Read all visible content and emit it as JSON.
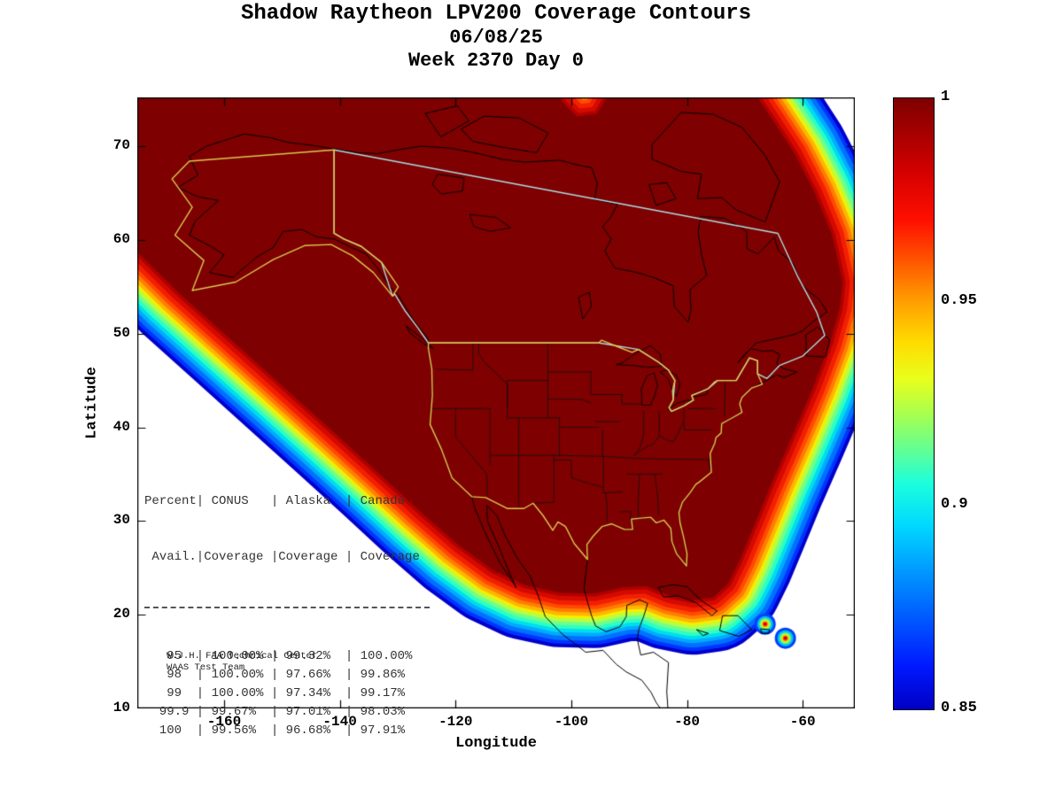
{
  "title": {
    "line1": "Shadow Raytheon LPV200 Coverage Contours",
    "line2": "06/08/25",
    "line3": "Week 2370 Day 0"
  },
  "axes": {
    "xlabel": "Longitude",
    "ylabel": "Latitude",
    "x_ticks": [
      "-160",
      "-140",
      "-120",
      "-100",
      "-80",
      "-60"
    ],
    "x_tick_values": [
      -160,
      -140,
      -120,
      -100,
      -80,
      -60
    ],
    "y_ticks": [
      "70",
      "60",
      "50",
      "40",
      "30",
      "20",
      "10"
    ],
    "y_tick_values": [
      70,
      60,
      50,
      40,
      30,
      20,
      10
    ],
    "x_range": [
      -175,
      -51
    ],
    "y_range": [
      10,
      75.2
    ]
  },
  "colorbar": {
    "tick_labels": [
      "1",
      "0.95",
      "0.9",
      "0.85"
    ],
    "tick_values": [
      1,
      0.95,
      0.9,
      0.85
    ],
    "min": 0.85,
    "max": 1
  },
  "coverage_table": {
    "header_line1": "Percent| CONUS   | Alaska  | Canada",
    "header_line2": " Avail.|Coverage |Coverage | Coverage",
    "rows": [
      {
        "avail": "95",
        "conus": "100.00%",
        "alaska": "99.32%",
        "canada": "100.00%"
      },
      {
        "avail": "98",
        "conus": "100.00%",
        "alaska": "97.66%",
        "canada": "99.86%"
      },
      {
        "avail": "99",
        "conus": "100.00%",
        "alaska": "97.34%",
        "canada": "99.17%"
      },
      {
        "avail": "99.9",
        "conus": "99.67%",
        "alaska": "97.01%",
        "canada": "98.03%"
      },
      {
        "avail": "100",
        "conus": "99.56%",
        "alaska": "96.68%",
        "canada": "97.91%"
      }
    ]
  },
  "credit": {
    "line1": "W.J.H. FAA Technical Center",
    "line2": "WAAS Test Team"
  },
  "chart_data": {
    "type": "contour-map",
    "title": "Shadow Raytheon LPV200 Coverage Contours",
    "subtitle_date": "06/08/25",
    "subtitle_week": "Week 2370 Day 0",
    "xlabel": "Longitude",
    "ylabel": "Latitude",
    "xlim": [
      -175,
      -51
    ],
    "ylim": [
      10,
      75.2
    ],
    "map_region": "North America",
    "colormap": "jet",
    "colorbar_range": [
      0.85,
      1
    ],
    "colorbar_ticks": [
      0.85,
      0.9,
      0.95,
      1
    ],
    "interior_color": "#7E0000",
    "band_colors": [
      "#0000CC",
      "#0033FF",
      "#0070FF",
      "#00AAFF",
      "#00DDEE",
      "#2BFFC4",
      "#6FFF8B",
      "#B6FF42",
      "#F4F000",
      "#FFB600",
      "#FF7D00",
      "#FF4A00",
      "#F22000",
      "#D40A00",
      "#B00000"
    ],
    "region_outline_colors": {
      "conus": "#DCC850",
      "alaska": "#DCC850",
      "canada": "#A8DEE4"
    },
    "regions": [
      "CONUS",
      "Alaska",
      "Canada"
    ],
    "coverage_stats": {
      "availability_percent": [
        95,
        98,
        99,
        99.9,
        100
      ],
      "conus_coverage_percent": [
        100.0,
        100.0,
        100.0,
        99.67,
        99.56
      ],
      "alaska_coverage_percent": [
        99.32,
        97.66,
        97.34,
        97.01,
        96.68
      ],
      "canada_coverage_percent": [
        100.0,
        99.86,
        99.17,
        98.03,
        97.91
      ]
    }
  }
}
